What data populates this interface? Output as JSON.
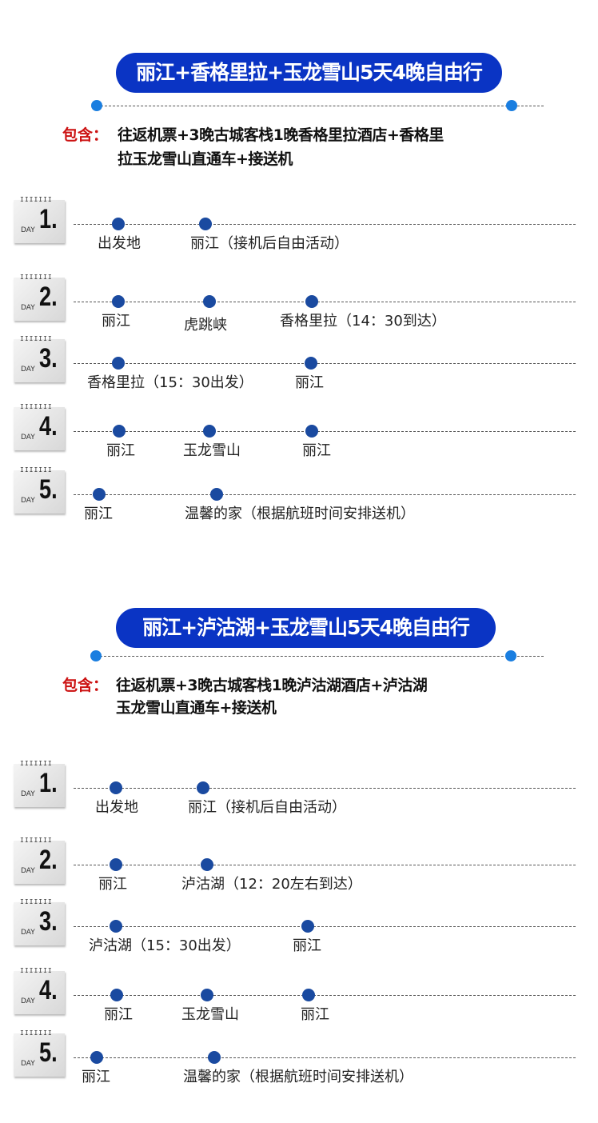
{
  "colors": {
    "banner": "#0a34c4",
    "dot": "#1a4aa0",
    "accent_dot": "#1a7ee0",
    "includes_label": "#cc1111"
  },
  "badge": {
    "rings": "IIIIIII",
    "day_word": "DAY"
  },
  "sections": [
    {
      "title": "丽江+香格里拉+玉龙雪山5天4晚自由行",
      "includes_label": "包含：",
      "includes_lines": [
        "往返机票+3晚古城客栈1晚香格里拉酒店+香格里",
        "拉玉龙雪山直通车+接送机"
      ],
      "days": [
        {
          "number": "1.",
          "stops": [
            "出发地",
            "丽江（接机后自由活动）"
          ]
        },
        {
          "number": "2.",
          "stops": [
            "丽江",
            "虎跳峡",
            "香格里拉（14：30到达）"
          ]
        },
        {
          "number": "3.",
          "stops": [
            "香格里拉（15：30出发）",
            "丽江"
          ]
        },
        {
          "number": "4.",
          "stops": [
            "丽江",
            "玉龙雪山",
            "丽江"
          ]
        },
        {
          "number": "5.",
          "stops": [
            "丽江",
            "温馨的家（根据航班时间安排送机）"
          ]
        }
      ]
    },
    {
      "title": "丽江+泸沽湖+玉龙雪山5天4晚自由行",
      "includes_label": "包含：",
      "includes_lines": [
        "往返机票+3晚古城客栈1晚泸沽湖酒店+泸沽湖",
        "玉龙雪山直通车+接送机"
      ],
      "days": [
        {
          "number": "1.",
          "stops": [
            "出发地",
            "丽江（接机后自由活动）"
          ]
        },
        {
          "number": "2.",
          "stops": [
            "丽江",
            "泸沽湖（12：20左右到达）"
          ]
        },
        {
          "number": "3.",
          "stops": [
            "泸沽湖（15：30出发）",
            "丽江"
          ]
        },
        {
          "number": "4.",
          "stops": [
            "丽江",
            "玉龙雪山",
            "丽江"
          ]
        },
        {
          "number": "5.",
          "stops": [
            "丽江",
            "温馨的家（根据航班时间安排送机）"
          ]
        }
      ]
    }
  ]
}
